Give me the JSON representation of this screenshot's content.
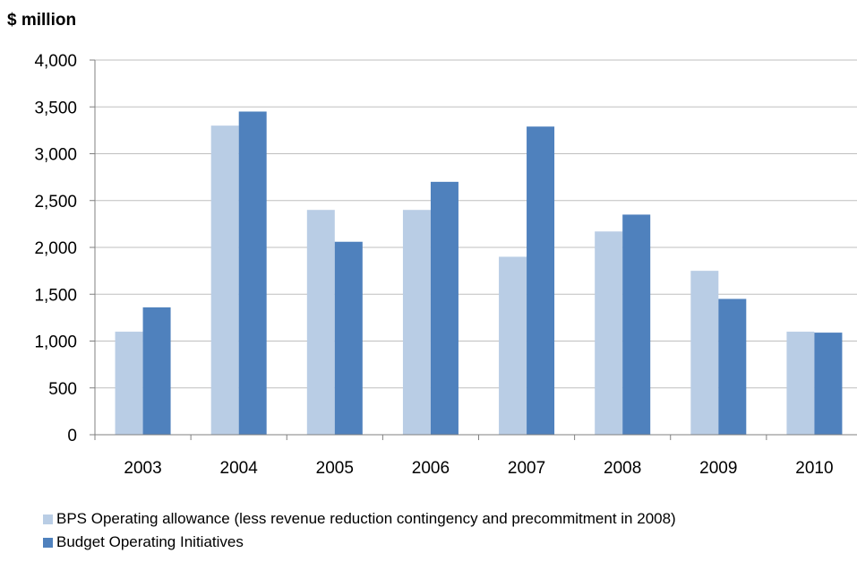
{
  "chart_data": {
    "type": "bar",
    "ylabel": "$ million",
    "categories": [
      "2003",
      "2004",
      "2005",
      "2006",
      "2007",
      "2008",
      "2009",
      "2010"
    ],
    "series": [
      {
        "name": "BPS Operating allowance (less revenue reduction contingency and precommitment in 2008)",
        "color": "#b9cde5",
        "values": [
          1100,
          3300,
          2400,
          2400,
          1900,
          2170,
          1750,
          1100
        ]
      },
      {
        "name": "Budget Operating Initiatives",
        "color": "#4f81bd",
        "values": [
          1360,
          3450,
          2060,
          2700,
          3290,
          2350,
          1450,
          1090
        ]
      }
    ],
    "ylim": [
      0,
      4000
    ],
    "yticks": [
      "0",
      "500",
      "1,000",
      "1,500",
      "2,000",
      "2,500",
      "3,000",
      "3,500",
      "4,000"
    ],
    "grid": true,
    "legend_position": "bottom-left"
  }
}
